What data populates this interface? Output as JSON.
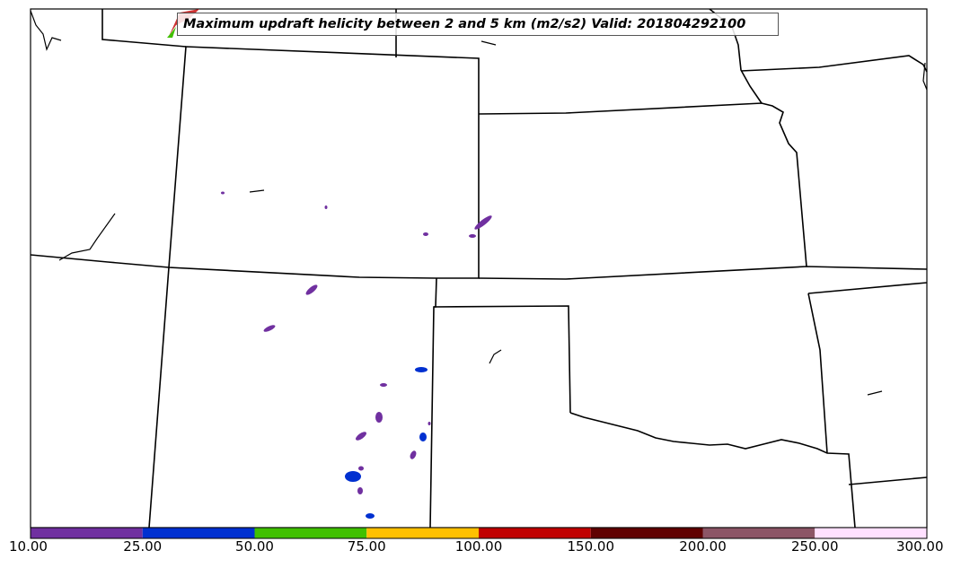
{
  "title": "Maximum updraft helicity between 2 and 5 km (m2/s2) Valid: 201804292100",
  "colorbar": {
    "ticks": [
      "10.00",
      "25.00",
      "50.00",
      "75.00",
      "100.00",
      "150.00",
      "200.00",
      "250.00",
      "300.00"
    ],
    "colors": [
      "#7030a0",
      "#0030d0",
      "#40c000",
      "#ffc000",
      "#c00000",
      "#600000",
      "#8c5566",
      "#ffe0ff"
    ]
  },
  "colors": {
    "border": "#000000",
    "helicity_low": "#7030a0",
    "helicity_mid": "#0030d0",
    "helicity_high": "#40c000"
  }
}
